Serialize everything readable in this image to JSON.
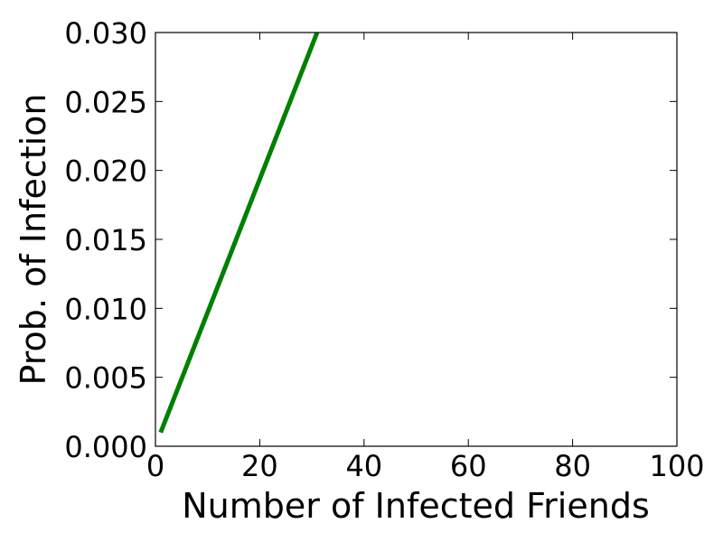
{
  "chart_data": {
    "type": "line",
    "title": "",
    "xlabel": "Number of Infected Friends",
    "ylabel": "Prob. of Infection",
    "xlim": [
      0,
      100
    ],
    "ylim": [
      0,
      0.03
    ],
    "xticks": [
      0,
      20,
      40,
      60,
      80,
      100
    ],
    "xtick_labels": [
      "0",
      "20",
      "40",
      "60",
      "80",
      "100"
    ],
    "yticks": [
      0,
      0.005,
      0.01,
      0.015,
      0.02,
      0.025,
      0.03
    ],
    "ytick_labels": [
      "0.000",
      "0.005",
      "0.010",
      "0.015",
      "0.020",
      "0.025",
      "0.030"
    ],
    "grid": false,
    "series": [
      {
        "color": "#008000",
        "x": [
          1,
          31
        ],
        "y": [
          0.001,
          0.03
        ]
      }
    ]
  }
}
